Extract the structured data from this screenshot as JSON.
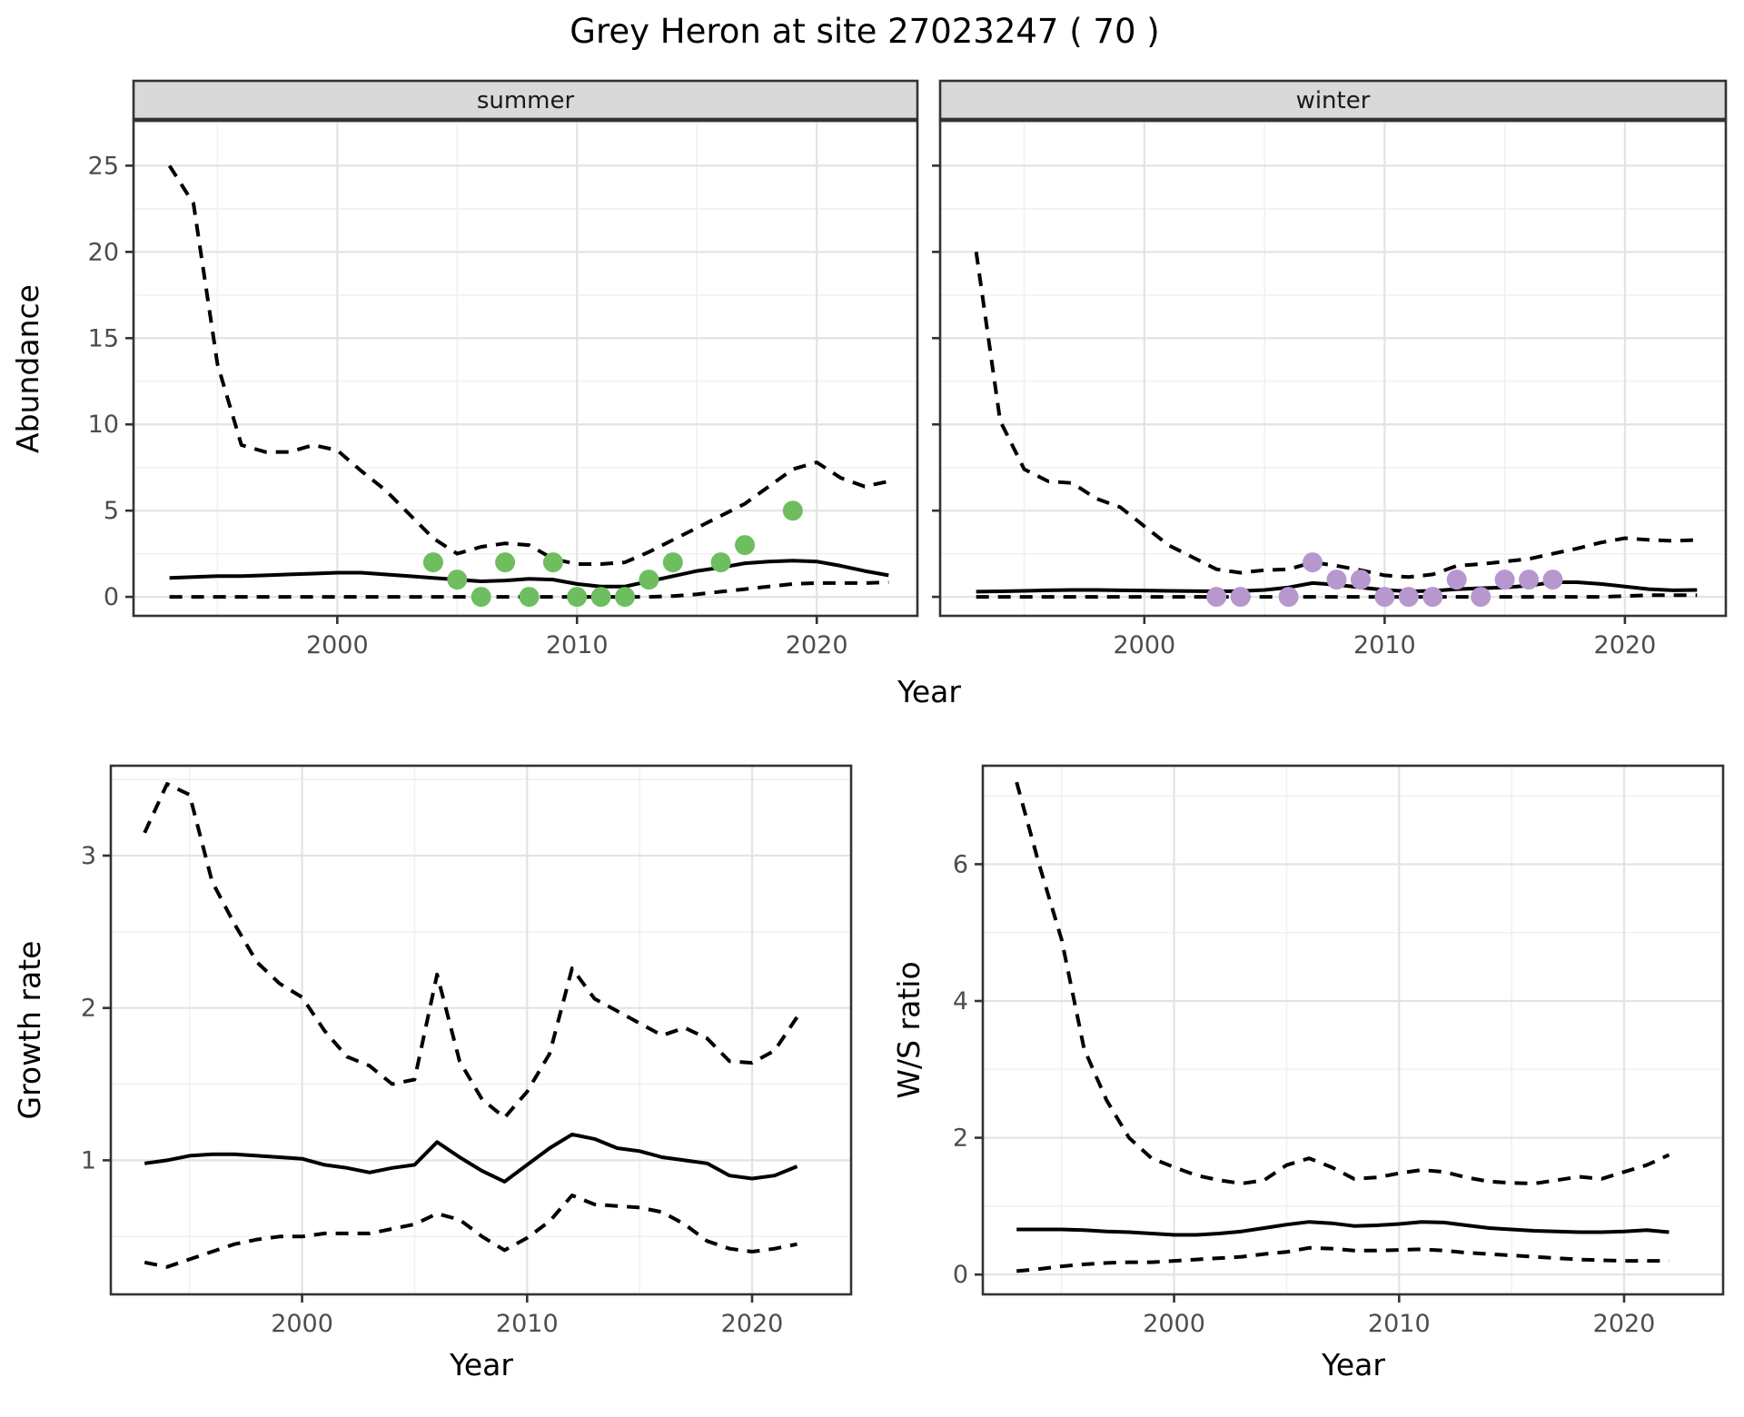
{
  "title": "Grey Heron at site 27023247 ( 70 )",
  "axis_labels": {
    "abundance": "Abundance",
    "year_top": "Year",
    "growth": "Growth rate",
    "ws": "W/S ratio",
    "year_bottom_left": "Year",
    "year_bottom_right": "Year"
  },
  "colors": {
    "summer_point": "#6ebe5f",
    "winter_point": "#b698ce",
    "line": "#000000",
    "grid_major": "#e3e3e3",
    "grid_minor": "#f1f1f1",
    "strip_bg": "#d9d9d9",
    "panel_border": "#333333",
    "tick_label": "#4d4d4d",
    "panel_bg": "#ffffff"
  },
  "chart_data": [
    {
      "id": "abundance-summer",
      "type": "line",
      "facet": "summer",
      "xlabel": "Year",
      "ylabel": "Abundance",
      "x_ticks": [
        2000,
        2010,
        2020
      ],
      "x_minor_ticks": [
        1995,
        2005,
        2015
      ],
      "y_ticks": [
        0,
        5,
        10,
        15,
        20,
        25
      ],
      "y_minor_ticks": [
        2.5,
        7.5,
        12.5,
        17.5,
        22.5,
        27.5
      ],
      "xlim": [
        1991.5,
        2024.2
      ],
      "ylim": [
        -1.1,
        27.6
      ],
      "x": [
        1993,
        1994,
        1995,
        1996,
        1997,
        1998,
        1999,
        2000,
        2001,
        2002,
        2003,
        2004,
        2005,
        2006,
        2007,
        2008,
        2009,
        2010,
        2011,
        2012,
        2013,
        2014,
        2015,
        2016,
        2017,
        2018,
        2019,
        2020,
        2021,
        2022,
        2023
      ],
      "series": [
        {
          "name": "upper_ci",
          "style": "dashed",
          "values": [
            25,
            22.8,
            13.5,
            8.8,
            8.4,
            8.4,
            8.8,
            8.5,
            7.3,
            6.2,
            4.8,
            3.4,
            2.5,
            2.9,
            3.1,
            3.0,
            2.2,
            1.9,
            1.9,
            2.0,
            2.6,
            3.3,
            4.0,
            4.7,
            5.4,
            6.4,
            7.4,
            7.8,
            6.9,
            6.4,
            6.7
          ]
        },
        {
          "name": "mean",
          "style": "solid",
          "values": [
            1.1,
            1.15,
            1.2,
            1.2,
            1.25,
            1.3,
            1.35,
            1.4,
            1.4,
            1.3,
            1.2,
            1.1,
            1.0,
            0.9,
            0.95,
            1.05,
            1.0,
            0.75,
            0.6,
            0.6,
            0.9,
            1.2,
            1.5,
            1.7,
            1.95,
            2.05,
            2.1,
            2.05,
            1.8,
            1.5,
            1.25
          ]
        },
        {
          "name": "lower_ci",
          "style": "dashed",
          "values": [
            0,
            0,
            0,
            0,
            0,
            0,
            0,
            0,
            0,
            0,
            0,
            0,
            0,
            0,
            0,
            0,
            0,
            0,
            0,
            0,
            0,
            0.05,
            0.15,
            0.3,
            0.45,
            0.6,
            0.75,
            0.8,
            0.8,
            0.8,
            0.85
          ]
        }
      ],
      "points": {
        "name": "summer_observations",
        "color": "#6ebe5f",
        "x": [
          2004,
          2005,
          2006,
          2007,
          2008,
          2009,
          2010,
          2011,
          2012,
          2013,
          2014,
          2016,
          2017,
          2019
        ],
        "y": [
          2,
          1,
          0,
          2,
          0,
          2,
          0,
          0,
          0,
          1,
          2,
          2,
          3,
          5
        ]
      }
    },
    {
      "id": "abundance-winter",
      "type": "line",
      "facet": "winter",
      "xlabel": "Year",
      "ylabel": "Abundance",
      "x_ticks": [
        2000,
        2010,
        2020
      ],
      "x_minor_ticks": [
        1995,
        2005,
        2015
      ],
      "y_ticks": [
        0,
        5,
        10,
        15,
        20,
        25
      ],
      "y_minor_ticks": [
        2.5,
        7.5,
        12.5,
        17.5,
        22.5,
        27.5
      ],
      "xlim": [
        1991.5,
        2024.2
      ],
      "ylim": [
        -1.1,
        27.6
      ],
      "x": [
        1993,
        1994,
        1995,
        1996,
        1997,
        1998,
        1999,
        2000,
        2001,
        2002,
        2003,
        2004,
        2005,
        2006,
        2007,
        2008,
        2009,
        2010,
        2011,
        2012,
        2013,
        2014,
        2015,
        2016,
        2017,
        2018,
        2019,
        2020,
        2021,
        2022,
        2023
      ],
      "series": [
        {
          "name": "upper_ci",
          "style": "dashed",
          "values": [
            20,
            10.2,
            7.4,
            6.7,
            6.6,
            5.7,
            5.2,
            4.1,
            3.0,
            2.3,
            1.6,
            1.4,
            1.55,
            1.6,
            2.0,
            1.8,
            1.55,
            1.25,
            1.15,
            1.3,
            1.8,
            1.9,
            2.05,
            2.2,
            2.5,
            2.8,
            3.15,
            3.4,
            3.3,
            3.25,
            3.3
          ]
        },
        {
          "name": "mean",
          "style": "solid",
          "values": [
            0.3,
            0.32,
            0.35,
            0.38,
            0.4,
            0.4,
            0.38,
            0.37,
            0.35,
            0.33,
            0.32,
            0.33,
            0.4,
            0.55,
            0.8,
            0.7,
            0.55,
            0.4,
            0.32,
            0.35,
            0.45,
            0.5,
            0.55,
            0.65,
            0.85,
            0.85,
            0.75,
            0.6,
            0.45,
            0.38,
            0.4
          ]
        },
        {
          "name": "lower_ci",
          "style": "dashed",
          "values": [
            0,
            0,
            0,
            0,
            0,
            0,
            0,
            0,
            0,
            0,
            0,
            0,
            0,
            0,
            0,
            0,
            0,
            0,
            0,
            0,
            0,
            0,
            0,
            0,
            0,
            0,
            0,
            0.05,
            0.1,
            0.1,
            0.1
          ]
        }
      ],
      "points": {
        "name": "winter_observations",
        "color": "#b698ce",
        "x": [
          2003,
          2004,
          2006,
          2007,
          2008,
          2009,
          2010,
          2011,
          2012,
          2013,
          2014,
          2015,
          2016,
          2017
        ],
        "y": [
          0,
          0,
          0,
          2,
          1,
          1,
          0,
          0,
          0,
          1,
          0,
          1,
          1,
          1
        ]
      }
    },
    {
      "id": "growth-rate",
      "type": "line",
      "facet": null,
      "xlabel": "Year",
      "ylabel": "Growth rate",
      "x_ticks": [
        2000,
        2010,
        2020
      ],
      "x_minor_ticks": [
        1995,
        2005,
        2015
      ],
      "y_ticks": [
        1,
        2,
        3
      ],
      "y_minor_ticks": [
        0.5,
        1.5,
        2.5,
        3.5
      ],
      "xlim": [
        1991.5,
        2024.4
      ],
      "ylim": [
        0.12,
        3.59
      ],
      "x": [
        1993,
        1994,
        1995,
        1996,
        1997,
        1998,
        1999,
        2000,
        2001,
        2002,
        2003,
        2004,
        2005,
        2006,
        2007,
        2008,
        2009,
        2010,
        2011,
        2012,
        2013,
        2014,
        2015,
        2016,
        2017,
        2018,
        2019,
        2020,
        2021,
        2022
      ],
      "series": [
        {
          "name": "upper_ci",
          "style": "dashed",
          "values": [
            3.15,
            3.47,
            3.4,
            2.83,
            2.55,
            2.3,
            2.16,
            2.07,
            1.85,
            1.68,
            1.62,
            1.5,
            1.53,
            2.22,
            1.65,
            1.4,
            1.28,
            1.45,
            1.7,
            2.26,
            2.06,
            1.98,
            1.9,
            1.82,
            1.87,
            1.8,
            1.65,
            1.64,
            1.72,
            1.94
          ]
        },
        {
          "name": "mean",
          "style": "solid",
          "values": [
            0.98,
            1.0,
            1.03,
            1.04,
            1.04,
            1.03,
            1.02,
            1.01,
            0.97,
            0.95,
            0.92,
            0.95,
            0.97,
            1.12,
            1.02,
            0.93,
            0.86,
            0.97,
            1.08,
            1.17,
            1.14,
            1.08,
            1.06,
            1.02,
            1.0,
            0.98,
            0.9,
            0.88,
            0.9,
            0.96
          ]
        },
        {
          "name": "lower_ci",
          "style": "dashed",
          "values": [
            0.33,
            0.3,
            0.35,
            0.4,
            0.45,
            0.48,
            0.5,
            0.5,
            0.52,
            0.52,
            0.52,
            0.55,
            0.58,
            0.65,
            0.61,
            0.5,
            0.41,
            0.49,
            0.6,
            0.77,
            0.71,
            0.7,
            0.69,
            0.66,
            0.58,
            0.47,
            0.42,
            0.4,
            0.42,
            0.45
          ]
        }
      ],
      "points": null
    },
    {
      "id": "ws-ratio",
      "type": "line",
      "facet": null,
      "xlabel": "Year",
      "ylabel": "W/S ratio",
      "x_ticks": [
        2000,
        2010,
        2020
      ],
      "x_minor_ticks": [
        1995,
        2005,
        2015
      ],
      "y_ticks": [
        0,
        2,
        4,
        6
      ],
      "y_minor_ticks": [
        1,
        3,
        5,
        7
      ],
      "xlim": [
        1991.5,
        2024.4
      ],
      "ylim": [
        -0.29,
        7.44
      ],
      "x": [
        1993,
        1994,
        1995,
        1996,
        1997,
        1998,
        1999,
        2000,
        2001,
        2002,
        2003,
        2004,
        2005,
        2006,
        2007,
        2008,
        2009,
        2010,
        2011,
        2012,
        2013,
        2014,
        2015,
        2016,
        2017,
        2018,
        2019,
        2020,
        2021,
        2022
      ],
      "series": [
        {
          "name": "upper_ci",
          "style": "dashed",
          "values": [
            7.2,
            6.0,
            4.9,
            3.3,
            2.55,
            2.0,
            1.7,
            1.57,
            1.45,
            1.38,
            1.33,
            1.38,
            1.6,
            1.7,
            1.57,
            1.4,
            1.42,
            1.48,
            1.53,
            1.5,
            1.42,
            1.36,
            1.34,
            1.33,
            1.38,
            1.43,
            1.4,
            1.5,
            1.6,
            1.75
          ]
        },
        {
          "name": "mean",
          "style": "solid",
          "values": [
            0.66,
            0.66,
            0.66,
            0.65,
            0.63,
            0.62,
            0.6,
            0.58,
            0.58,
            0.6,
            0.63,
            0.68,
            0.73,
            0.77,
            0.75,
            0.71,
            0.72,
            0.74,
            0.77,
            0.76,
            0.72,
            0.68,
            0.66,
            0.64,
            0.63,
            0.62,
            0.62,
            0.63,
            0.65,
            0.62
          ]
        },
        {
          "name": "lower_ci",
          "style": "dashed",
          "values": [
            0.05,
            0.08,
            0.12,
            0.15,
            0.17,
            0.18,
            0.18,
            0.2,
            0.22,
            0.24,
            0.26,
            0.3,
            0.33,
            0.39,
            0.38,
            0.35,
            0.35,
            0.36,
            0.37,
            0.35,
            0.32,
            0.3,
            0.28,
            0.26,
            0.24,
            0.22,
            0.21,
            0.2,
            0.2,
            0.2
          ]
        }
      ],
      "points": null
    }
  ]
}
